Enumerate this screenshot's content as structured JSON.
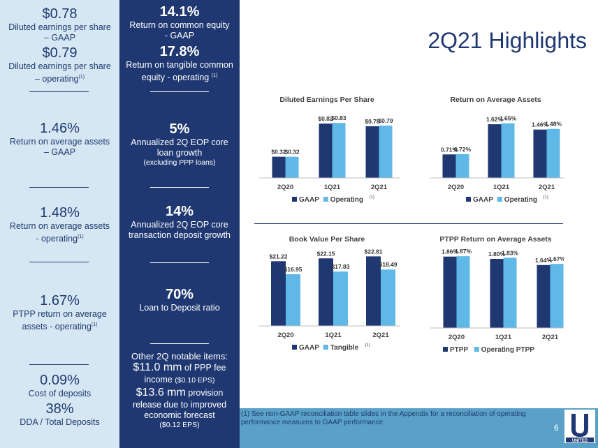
{
  "title": "2Q21 Highlights",
  "page_number": "6",
  "footnote": "(1)  See non-GAAP reconciliation table slides in the Appendix for a reconciliation of operating performance measures to GAAP performance",
  "logo_text": "UNITED",
  "left": {
    "eps_gaap_value": "$0.78",
    "eps_gaap_label_1": "Diluted earnings per share",
    "eps_gaap_label_2": "– GAAP",
    "eps_op_value": "$0.79",
    "eps_op_label_1": "Diluted earnings per share",
    "eps_op_label_2": "– operating",
    "roa_gaap_value": "1.46%",
    "roa_gaap_label_1": "Return on average assets",
    "roa_gaap_label_2": "– GAAP",
    "roa_op_value": "1.48%",
    "roa_op_label_1": "Return on average assets",
    "roa_op_label_2": "- operating",
    "pptp_value": "1.67%",
    "pptp_label_1": "PTPP return on average",
    "pptp_label_2": "assets - operating",
    "cost_value": "0.09%",
    "cost_label": "Cost of deposits",
    "dda_value": "38%",
    "dda_label": "DDA / Total Deposits",
    "sup": "(1)"
  },
  "middle": {
    "roe_value": "14.1%",
    "roe_label_1": "Return on common equity",
    "roe_label_2": "- GAAP",
    "rotce_value": "17.8%",
    "rotce_label_1": "Return on tangible common",
    "rotce_label_2": "equity - operating",
    "loan_value": "5%",
    "loan_label_1": "Annualized 2Q EOP core",
    "loan_label_2": "loan growth",
    "loan_label_3": "(excluding PPP loans)",
    "deposit_value": "14%",
    "deposit_label_1": "Annualized 2Q EOP core",
    "deposit_label_2": "transaction deposit growth",
    "ltd_value": "70%",
    "ltd_label": "Loan to Deposit ratio",
    "notable_title": "Other 2Q notable items:",
    "ppp_amount": "$11.0 mm",
    "ppp_text_1": " of PPP fee",
    "ppp_text_2": "income ",
    "ppp_eps": "($0.10 EPS)",
    "prov_amount": "$13.6 mm",
    "prov_text_1": " provision",
    "prov_text_2": "release due to improved",
    "prov_text_3": "economic forecast",
    "prov_eps": "($0.12 EPS)",
    "sup": "(1)"
  },
  "chart_data": [
    {
      "type": "bar",
      "title": "Diluted Earnings Per Share",
      "categories": [
        "2Q20",
        "1Q21",
        "2Q21"
      ],
      "series": [
        {
          "name": "GAAP",
          "values": [
            0.32,
            0.82,
            0.78
          ],
          "labels": [
            "$0.32",
            "$0.82",
            "$0.78"
          ]
        },
        {
          "name": "Operating",
          "values": [
            0.32,
            0.83,
            0.79
          ],
          "labels": [
            "$0.32",
            "$0.83",
            "$0.79"
          ]
        }
      ],
      "legend_sup": [
        "",
        "(1)"
      ],
      "ylim": [
        0,
        1.0
      ]
    },
    {
      "type": "bar",
      "title": "Return on Average Assets",
      "categories": [
        "2Q20",
        "1Q21",
        "2Q21"
      ],
      "series": [
        {
          "name": "GAAP",
          "values": [
            0.71,
            1.62,
            1.46
          ],
          "labels": [
            "0.71%",
            "1.62%",
            "1.46%"
          ]
        },
        {
          "name": "Operating",
          "values": [
            0.72,
            1.65,
            1.48
          ],
          "labels": [
            "0.72%",
            "1.65%",
            "1.48%"
          ]
        }
      ],
      "legend_sup": [
        "",
        "(1)"
      ],
      "ylim": [
        0,
        2.0
      ]
    },
    {
      "type": "bar",
      "title": "Book Value Per Share",
      "categories": [
        "2Q20",
        "1Q21",
        "2Q21"
      ],
      "series": [
        {
          "name": "GAAP",
          "values": [
            21.22,
            22.15,
            22.81
          ],
          "labels": [
            "$21.22",
            "$22.15",
            "$22.81"
          ]
        },
        {
          "name": "Tangible",
          "values": [
            16.95,
            17.83,
            18.49
          ],
          "labels": [
            "$16.95",
            "$17.83",
            "$18.49"
          ]
        }
      ],
      "legend_sup": [
        "",
        "(1)"
      ],
      "ylim": [
        0,
        24.5
      ]
    },
    {
      "type": "bar",
      "title": "PTPP Return on Average Assets",
      "categories": [
        "2Q20",
        "1Q21",
        "2Q21"
      ],
      "series": [
        {
          "name": "PTPP",
          "values": [
            1.86,
            1.8,
            1.64
          ],
          "labels": [
            "1.86%",
            "1.80%",
            "1.64%"
          ]
        },
        {
          "name": "Operating PTPP",
          "values": [
            1.87,
            1.83,
            1.67
          ],
          "labels": [
            "1.87%",
            "1.83%",
            "1.67%"
          ]
        }
      ],
      "legend_sup": [
        "",
        ""
      ],
      "ylim": [
        0,
        2.0
      ]
    }
  ],
  "colors": {
    "dark_navy": "#1f3872",
    "light_blue": "#d6e7f4",
    "bar_dark": "#1f3872",
    "bar_light": "#5fb8e6",
    "footer": "#5aa1c7"
  }
}
